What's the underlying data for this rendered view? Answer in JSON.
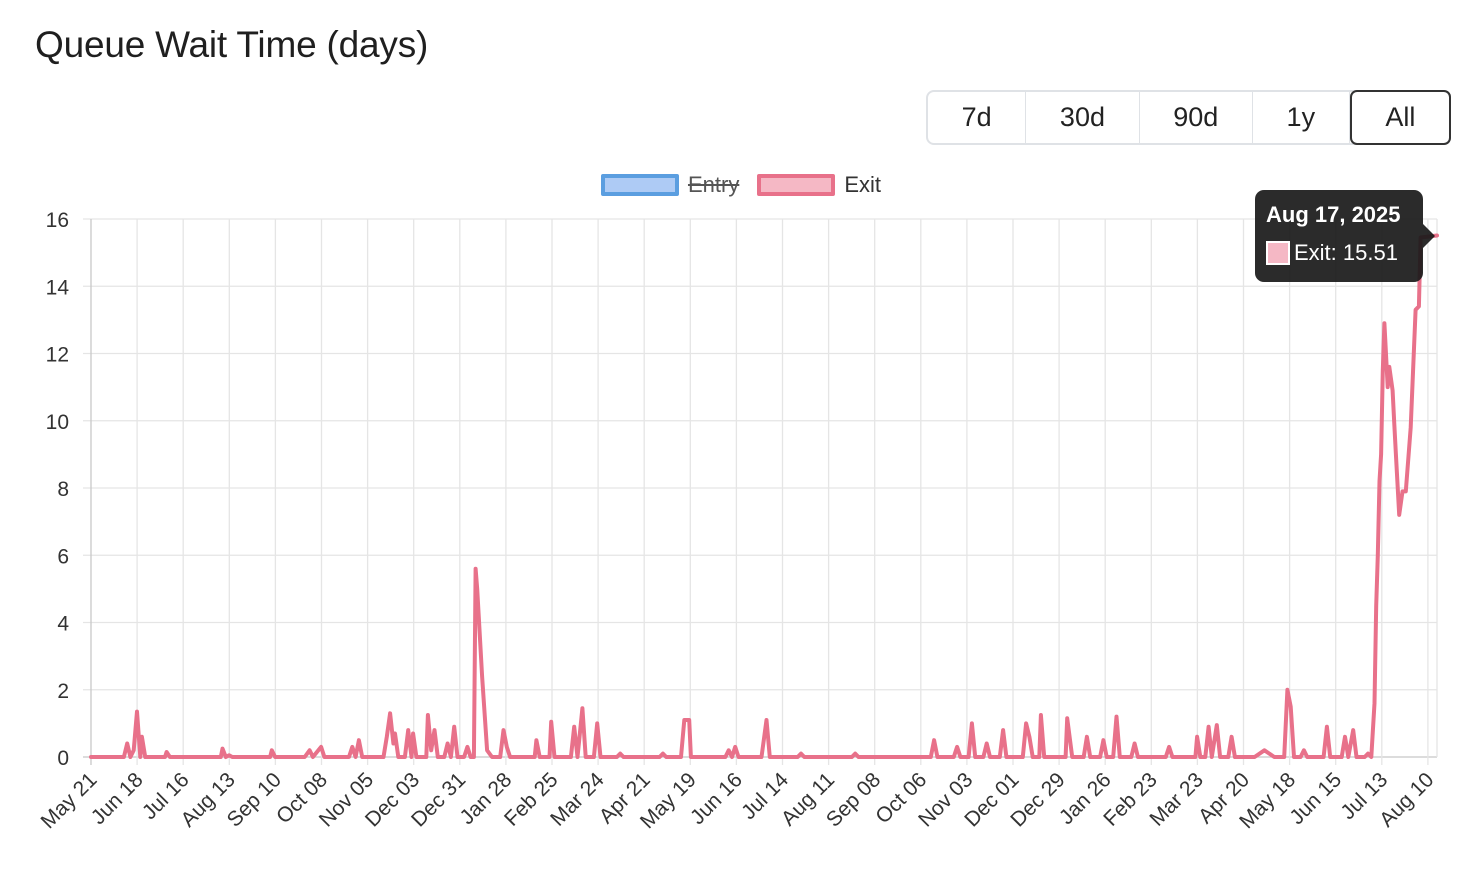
{
  "page": {
    "title": "Queue Wait Time (days)"
  },
  "range_selector": {
    "options": [
      "7d",
      "30d",
      "90d",
      "1y",
      "All"
    ],
    "selected": "All"
  },
  "legend": {
    "items": [
      {
        "label": "Entry",
        "hidden": true,
        "fill": "#aecbf5",
        "border": "#5b9ee0"
      },
      {
        "label": "Exit",
        "hidden": false,
        "fill": "#f5b8c5",
        "border": "#e8718a"
      }
    ]
  },
  "tooltip": {
    "title": "Aug 17, 2025",
    "label": "Exit: 15.51",
    "swatch_color": "#f5b8c5"
  },
  "chart_data": {
    "type": "line",
    "x_tick_labels": [
      "May 21",
      "Jun 18",
      "Jul 16",
      "Aug 13",
      "Sep 10",
      "Oct 08",
      "Nov 05",
      "Dec 03",
      "Dec 31",
      "Jan 28",
      "Feb 25",
      "Mar 24",
      "Apr 21",
      "May 19",
      "Jun 16",
      "Jul 14",
      "Aug 11",
      "Sep 08",
      "Oct 06",
      "Nov 03",
      "Dec 01",
      "Dec 29",
      "Jan 26",
      "Feb 23",
      "Mar 23",
      "Apr 20",
      "May 18",
      "Jun 15",
      "Jul 13",
      "Aug 10"
    ],
    "x_range": [
      "2023-05-21",
      "2025-08-17"
    ],
    "ylim": [
      0,
      16
    ],
    "yticks": [
      0,
      2,
      4,
      6,
      8,
      10,
      12,
      14,
      16
    ],
    "grid": true,
    "legend_position": "top-center",
    "series": [
      {
        "name": "Exit",
        "color": "#e8718a",
        "points": [
          [
            "2023-05-21",
            0
          ],
          [
            "2023-06-10",
            0
          ],
          [
            "2023-06-12",
            0.4
          ],
          [
            "2023-06-14",
            0
          ],
          [
            "2023-06-16",
            0.2
          ],
          [
            "2023-06-18",
            1.35
          ],
          [
            "2023-06-20",
            0
          ],
          [
            "2023-06-21",
            0.6
          ],
          [
            "2023-06-23",
            0
          ],
          [
            "2023-07-05",
            0
          ],
          [
            "2023-07-06",
            0.15
          ],
          [
            "2023-07-08",
            0
          ],
          [
            "2023-08-08",
            0
          ],
          [
            "2023-08-09",
            0.25
          ],
          [
            "2023-08-11",
            0
          ],
          [
            "2023-08-13",
            0.05
          ],
          [
            "2023-08-15",
            0
          ],
          [
            "2023-09-07",
            0
          ],
          [
            "2023-09-08",
            0.2
          ],
          [
            "2023-09-10",
            0
          ],
          [
            "2023-09-28",
            0
          ],
          [
            "2023-10-01",
            0.2
          ],
          [
            "2023-10-03",
            0
          ],
          [
            "2023-10-08",
            0.3
          ],
          [
            "2023-10-10",
            0
          ],
          [
            "2023-10-25",
            0
          ],
          [
            "2023-10-27",
            0.3
          ],
          [
            "2023-10-29",
            0
          ],
          [
            "2023-10-31",
            0.5
          ],
          [
            "2023-11-02",
            0
          ],
          [
            "2023-11-15",
            0
          ],
          [
            "2023-11-17",
            0.6
          ],
          [
            "2023-11-19",
            1.3
          ],
          [
            "2023-11-21",
            0.4
          ],
          [
            "2023-11-22",
            0.7
          ],
          [
            "2023-11-24",
            0
          ],
          [
            "2023-11-28",
            0
          ],
          [
            "2023-11-30",
            0.8
          ],
          [
            "2023-12-02",
            0
          ],
          [
            "2023-12-03",
            0.7
          ],
          [
            "2023-12-05",
            0
          ],
          [
            "2023-12-11",
            0
          ],
          [
            "2023-12-12",
            1.25
          ],
          [
            "2023-12-14",
            0.2
          ],
          [
            "2023-12-16",
            0.8
          ],
          [
            "2023-12-18",
            0
          ],
          [
            "2023-12-22",
            0
          ],
          [
            "2023-12-24",
            0.4
          ],
          [
            "2023-12-26",
            0
          ],
          [
            "2023-12-28",
            0.9
          ],
          [
            "2023-12-30",
            0
          ],
          [
            "2024-01-03",
            0
          ],
          [
            "2024-01-05",
            0.3
          ],
          [
            "2024-01-07",
            0
          ],
          [
            "2024-01-09",
            0
          ],
          [
            "2024-01-10",
            5.6
          ],
          [
            "2024-01-11",
            5.0
          ],
          [
            "2024-01-14",
            2.4
          ],
          [
            "2024-01-17",
            0.2
          ],
          [
            "2024-01-20",
            0
          ],
          [
            "2024-01-25",
            0
          ],
          [
            "2024-01-27",
            0.8
          ],
          [
            "2024-01-29",
            0.3
          ],
          [
            "2024-01-31",
            0
          ],
          [
            "2024-02-15",
            0
          ],
          [
            "2024-02-16",
            0.5
          ],
          [
            "2024-02-18",
            0
          ],
          [
            "2024-02-24",
            0
          ],
          [
            "2024-02-25",
            1.05
          ],
          [
            "2024-02-27",
            0
          ],
          [
            "2024-03-08",
            0
          ],
          [
            "2024-03-10",
            0.9
          ],
          [
            "2024-03-12",
            0
          ],
          [
            "2024-03-15",
            1.45
          ],
          [
            "2024-03-17",
            0
          ],
          [
            "2024-03-22",
            0
          ],
          [
            "2024-03-24",
            1.0
          ],
          [
            "2024-03-26",
            0
          ],
          [
            "2024-04-05",
            0
          ],
          [
            "2024-04-07",
            0.1
          ],
          [
            "2024-04-09",
            0
          ],
          [
            "2024-05-01",
            0
          ],
          [
            "2024-05-03",
            0.1
          ],
          [
            "2024-05-05",
            0
          ],
          [
            "2024-05-14",
            0
          ],
          [
            "2024-05-16",
            1.1
          ],
          [
            "2024-05-19",
            1.1
          ],
          [
            "2024-05-20",
            0
          ],
          [
            "2024-06-10",
            0
          ],
          [
            "2024-06-12",
            0.2
          ],
          [
            "2024-06-14",
            0
          ],
          [
            "2024-06-16",
            0.3
          ],
          [
            "2024-06-18",
            0
          ],
          [
            "2024-07-02",
            0
          ],
          [
            "2024-07-05",
            1.1
          ],
          [
            "2024-07-07",
            0
          ],
          [
            "2024-07-24",
            0
          ],
          [
            "2024-07-26",
            0.1
          ],
          [
            "2024-07-28",
            0
          ],
          [
            "2024-08-26",
            0
          ],
          [
            "2024-08-28",
            0.1
          ],
          [
            "2024-08-30",
            0
          ],
          [
            "2024-10-13",
            0
          ],
          [
            "2024-10-15",
            0.5
          ],
          [
            "2024-10-17",
            0
          ],
          [
            "2024-10-27",
            0
          ],
          [
            "2024-10-29",
            0.3
          ],
          [
            "2024-10-31",
            0
          ],
          [
            "2024-11-05",
            0
          ],
          [
            "2024-11-07",
            1.0
          ],
          [
            "2024-11-09",
            0
          ],
          [
            "2024-11-14",
            0
          ],
          [
            "2024-11-16",
            0.4
          ],
          [
            "2024-11-18",
            0
          ],
          [
            "2024-11-24",
            0
          ],
          [
            "2024-11-26",
            0.8
          ],
          [
            "2024-11-28",
            0
          ],
          [
            "2024-12-08",
            0
          ],
          [
            "2024-12-10",
            1.0
          ],
          [
            "2024-12-12",
            0.6
          ],
          [
            "2024-12-14",
            0
          ],
          [
            "2024-12-18",
            0
          ],
          [
            "2024-12-19",
            1.25
          ],
          [
            "2024-12-21",
            0
          ],
          [
            "2025-01-03",
            0
          ],
          [
            "2025-01-04",
            1.15
          ],
          [
            "2025-01-07",
            0
          ],
          [
            "2025-01-14",
            0
          ],
          [
            "2025-01-16",
            0.6
          ],
          [
            "2025-01-18",
            0
          ],
          [
            "2025-01-24",
            0
          ],
          [
            "2025-01-26",
            0.5
          ],
          [
            "2025-01-28",
            0
          ],
          [
            "2025-02-01",
            0
          ],
          [
            "2025-02-03",
            1.2
          ],
          [
            "2025-02-05",
            0
          ],
          [
            "2025-02-12",
            0
          ],
          [
            "2025-02-14",
            0.4
          ],
          [
            "2025-02-16",
            0
          ],
          [
            "2025-03-05",
            0
          ],
          [
            "2025-03-07",
            0.3
          ],
          [
            "2025-03-09",
            0
          ],
          [
            "2025-03-23",
            0
          ],
          [
            "2025-03-24",
            0.6
          ],
          [
            "2025-03-26",
            0
          ],
          [
            "2025-03-29",
            0
          ],
          [
            "2025-03-31",
            0.9
          ],
          [
            "2025-04-02",
            0
          ],
          [
            "2025-04-05",
            0.95
          ],
          [
            "2025-04-07",
            0
          ],
          [
            "2025-04-12",
            0
          ],
          [
            "2025-04-14",
            0.6
          ],
          [
            "2025-04-16",
            0
          ],
          [
            "2025-04-28",
            0
          ],
          [
            "2025-05-04",
            0.2
          ],
          [
            "2025-05-10",
            0
          ],
          [
            "2025-05-16",
            0
          ],
          [
            "2025-05-18",
            2.0
          ],
          [
            "2025-05-20",
            1.5
          ],
          [
            "2025-05-22",
            0
          ],
          [
            "2025-05-26",
            0
          ],
          [
            "2025-05-28",
            0.2
          ],
          [
            "2025-05-30",
            0
          ],
          [
            "2025-06-09",
            0
          ],
          [
            "2025-06-11",
            0.9
          ],
          [
            "2025-06-13",
            0
          ],
          [
            "2025-06-20",
            0
          ],
          [
            "2025-06-22",
            0.6
          ],
          [
            "2025-06-24",
            0
          ],
          [
            "2025-06-27",
            0.8
          ],
          [
            "2025-06-29",
            0
          ],
          [
            "2025-07-04",
            0
          ],
          [
            "2025-07-06",
            0.1
          ],
          [
            "2025-07-08",
            0
          ],
          [
            "2025-07-10",
            1.6
          ],
          [
            "2025-07-11",
            4.5
          ],
          [
            "2025-07-12",
            6.0
          ],
          [
            "2025-07-13",
            8.2
          ],
          [
            "2025-07-14",
            9.0
          ],
          [
            "2025-07-15",
            11.5
          ],
          [
            "2025-07-16",
            12.9
          ],
          [
            "2025-07-18",
            11.0
          ],
          [
            "2025-07-19",
            11.6
          ],
          [
            "2025-07-21",
            10.9
          ],
          [
            "2025-07-22",
            9.9
          ],
          [
            "2025-07-23",
            9.0
          ],
          [
            "2025-07-25",
            7.2
          ],
          [
            "2025-07-27",
            7.9
          ],
          [
            "2025-07-29",
            7.9
          ],
          [
            "2025-08-01",
            9.8
          ],
          [
            "2025-08-04",
            13.3
          ],
          [
            "2025-08-06",
            13.4
          ],
          [
            "2025-08-07",
            15.45
          ],
          [
            "2025-08-17",
            15.51
          ]
        ]
      }
    ]
  }
}
